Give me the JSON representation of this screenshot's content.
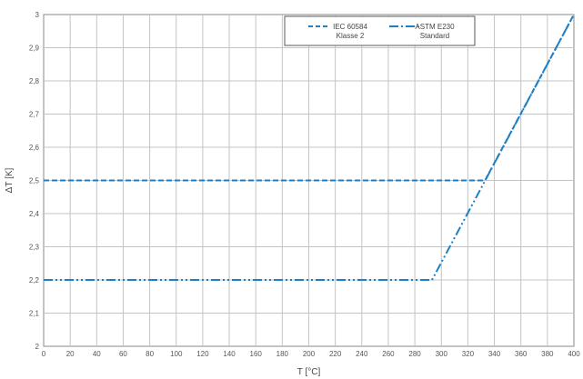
{
  "chart_data": {
    "type": "line",
    "title": "",
    "xlabel": "T [°C]",
    "ylabel": "ΔT [K]",
    "xlim": [
      0,
      400
    ],
    "ylim": [
      2,
      3
    ],
    "x_ticks": [
      0,
      20,
      40,
      60,
      80,
      100,
      120,
      140,
      160,
      180,
      200,
      220,
      240,
      260,
      280,
      300,
      320,
      340,
      360,
      380,
      400
    ],
    "y_ticks": [
      2,
      2.1,
      2.2,
      2.3,
      2.4,
      2.5,
      2.6,
      2.7,
      2.8,
      2.9,
      3
    ],
    "y_tick_labels": [
      "2",
      "2,1",
      "2,2",
      "2,3",
      "2,4",
      "2,5",
      "2,6",
      "2,7",
      "2,8",
      "2,9",
      "3"
    ],
    "grid": true,
    "legend_position": "top-center",
    "series": [
      {
        "name": "IEC 60584 Klasse 2",
        "legend_lines": [
          "IEC 60584",
          "Klasse 2"
        ],
        "line_style": "dashed",
        "color": "#1f7fc4",
        "points": [
          [
            0,
            2.5
          ],
          [
            333,
            2.5
          ],
          [
            400,
            3.0
          ]
        ]
      },
      {
        "name": "ASTM E230 Standard",
        "legend_lines": [
          "ASTM E230",
          "Standard"
        ],
        "line_style": "dash-dot-dot",
        "color": "#1f7fc4",
        "points": [
          [
            0,
            2.2
          ],
          [
            293,
            2.2
          ],
          [
            400,
            3.0
          ]
        ]
      }
    ]
  }
}
